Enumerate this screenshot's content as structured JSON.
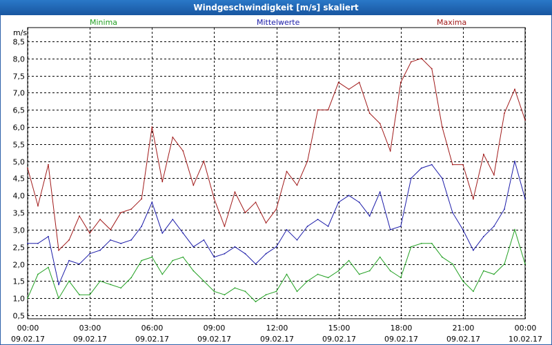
{
  "title": "Windgeschwindigkeit [m/s] skaliert",
  "legend": [
    {
      "label": "Minima",
      "color": "#22a022"
    },
    {
      "label": "Mittelwerte",
      "color": "#1a1aa8"
    },
    {
      "label": "Maxima",
      "color": "#a01818"
    }
  ],
  "chart_data": {
    "type": "line",
    "ylabel": "m/s",
    "ylim": [
      0.4,
      8.9
    ],
    "yticks": [
      "0,5",
      "1,0",
      "1,5",
      "2,0",
      "2,5",
      "3,0",
      "3,5",
      "4,0",
      "4,5",
      "5,0",
      "5,5",
      "6,0",
      "6,5",
      "7,0",
      "7,5",
      "8,0",
      "8,5"
    ],
    "xticks": [
      {
        "time": "00:00",
        "date": "09.02.17"
      },
      {
        "time": "03:00",
        "date": "09.02.17"
      },
      {
        "time": "06:00",
        "date": "09.02.17"
      },
      {
        "time": "09:00",
        "date": "09.02.17"
      },
      {
        "time": "12:00",
        "date": "09.02.17"
      },
      {
        "time": "15:00",
        "date": "09.02.17"
      },
      {
        "time": "18:00",
        "date": "09.02.17"
      },
      {
        "time": "21:00",
        "date": "09.02.17"
      },
      {
        "time": "00:00",
        "date": "10.02.17"
      }
    ],
    "grid": true,
    "x_hours": [
      0,
      0.5,
      1,
      1.5,
      2,
      2.5,
      3,
      3.5,
      4,
      4.5,
      5,
      5.5,
      6,
      6.5,
      7,
      7.5,
      8,
      8.5,
      9,
      9.5,
      10,
      10.5,
      11,
      11.5,
      12,
      12.5,
      13,
      13.5,
      14,
      14.5,
      15,
      15.5,
      16,
      16.5,
      17,
      17.5,
      18,
      18.5,
      19,
      19.5,
      20,
      20.5,
      21,
      21.5,
      22,
      22.5,
      23,
      23.5,
      24
    ],
    "series": [
      {
        "name": "Maxima",
        "color": "#a01818",
        "values": [
          4.8,
          3.7,
          4.9,
          2.4,
          2.7,
          3.4,
          2.9,
          3.3,
          3.0,
          3.5,
          3.6,
          3.9,
          6.0,
          4.4,
          5.7,
          5.3,
          4.3,
          5.0,
          3.9,
          3.1,
          4.1,
          3.5,
          3.8,
          3.2,
          3.6,
          4.7,
          4.3,
          5.0,
          6.5,
          6.5,
          7.3,
          7.1,
          7.3,
          6.4,
          6.1,
          5.3,
          7.3,
          7.9,
          8.0,
          7.7,
          6.0,
          4.9,
          4.9,
          3.9,
          5.2,
          4.6,
          6.4,
          7.1,
          6.2
        ]
      },
      {
        "name": "Mittelwerte",
        "color": "#1a1aa8",
        "values": [
          2.6,
          2.6,
          2.8,
          1.4,
          2.1,
          2.0,
          2.3,
          2.4,
          2.7,
          2.6,
          2.7,
          3.1,
          3.8,
          2.9,
          3.3,
          2.9,
          2.5,
          2.7,
          2.2,
          2.3,
          2.5,
          2.3,
          2.0,
          2.3,
          2.5,
          3.0,
          2.7,
          3.1,
          3.3,
          3.1,
          3.8,
          4.0,
          3.8,
          3.4,
          4.1,
          3.0,
          3.1,
          4.5,
          4.8,
          4.9,
          4.5,
          3.5,
          3.0,
          2.4,
          2.8,
          3.1,
          3.6,
          5.0,
          3.9
        ]
      },
      {
        "name": "Minima",
        "color": "#22a022",
        "values": [
          1.0,
          1.7,
          1.9,
          1.0,
          1.5,
          1.1,
          1.1,
          1.5,
          1.4,
          1.3,
          1.6,
          2.1,
          2.2,
          1.7,
          2.1,
          2.2,
          1.8,
          1.5,
          1.2,
          1.1,
          1.3,
          1.2,
          0.9,
          1.1,
          1.2,
          1.7,
          1.2,
          1.5,
          1.7,
          1.6,
          1.8,
          2.1,
          1.7,
          1.8,
          2.2,
          1.8,
          1.6,
          2.5,
          2.6,
          2.6,
          2.2,
          2.0,
          1.5,
          1.2,
          1.8,
          1.7,
          2.0,
          3.0,
          2.0
        ]
      }
    ]
  }
}
